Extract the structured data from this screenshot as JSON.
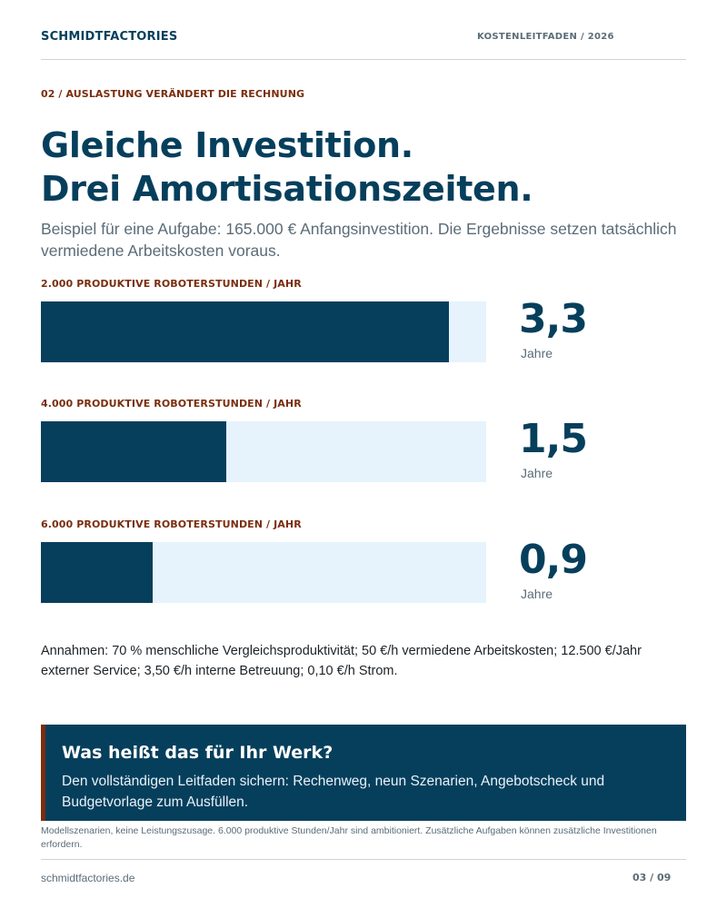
{
  "header": {
    "brand": "SCHMIDTFACTORIES",
    "meta": "KOSTENLEITFADEN / 2026"
  },
  "eyebrow": "02 / AUSLASTUNG VERÄNDERT DIE RECHNUNG",
  "headline": {
    "line1": "Gleiche Investition.",
    "line2": "Drei Amortisationszeiten."
  },
  "lede": "Beispiel für eine Aufgabe: 165.000 € Anfangsinvestition. Die Ergebnisse setzen tatsächlich vermiedene Arbeitskosten voraus.",
  "chart_data": {
    "type": "bar",
    "orientation": "horizontal",
    "categories": [
      "2.000 PRODUKTIVE ROBOTERSTUNDEN / JAHR",
      "4.000 PRODUKTIVE ROBOTERSTUNDEN / JAHR",
      "6.000 PRODUKTIVE ROBOTERSTUNDEN / JAHR"
    ],
    "values": [
      3.3,
      1.5,
      0.9
    ],
    "value_labels": [
      "3,3",
      "1,5",
      "0,9"
    ],
    "unit": "Jahre",
    "xlim": [
      0,
      3.6
    ],
    "colors": {
      "bar": "#063f5c",
      "track": "#e6f3fc",
      "label": "#7a2e0e"
    }
  },
  "assumptions": "Annahmen: 70 % menschliche Vergleichsproduktivität; 50 €/h vermiedene Arbeitskosten; 12.500 €/Jahr externer Service; 3,50 €/h interne Betreuung; 0,10 €/h Strom.",
  "cta": {
    "title": "Was heißt das für Ihr Werk?",
    "text": "Den vollständigen Leitfaden sichern: Rechenweg, neun Szenarien, Angebotscheck und Budgetvorlage zum Ausfüllen."
  },
  "disclaimer": "Modellszenarien, keine Leistungszusage. 6.000 produktive Stunden/Jahr sind ambitioniert. Zusätzliche Aufgaben können zusätzliche Investitionen erfordern.",
  "footer": {
    "url": "schmidtfactories.de",
    "page": "03 / 09"
  }
}
